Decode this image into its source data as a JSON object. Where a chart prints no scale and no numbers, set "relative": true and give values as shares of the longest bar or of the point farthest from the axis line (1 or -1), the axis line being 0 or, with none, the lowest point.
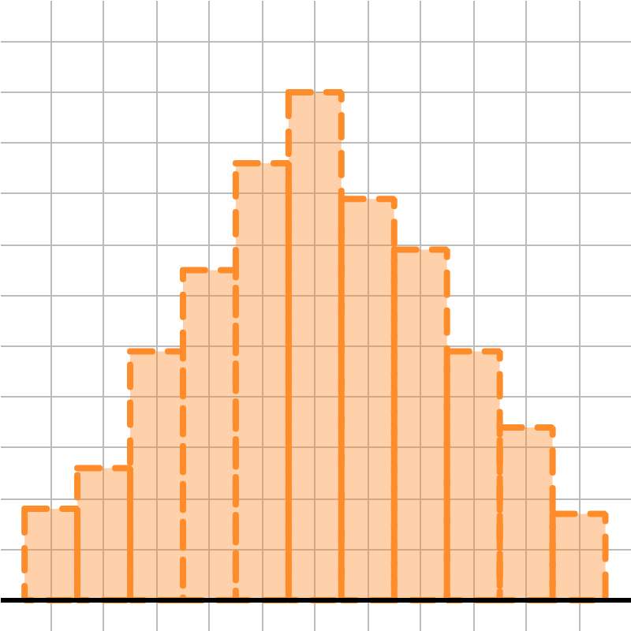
{
  "chart_data": {
    "type": "bar",
    "relative": true,
    "categories": [
      null,
      null,
      null,
      null,
      null,
      null,
      null,
      null,
      null,
      null,
      null
    ],
    "values": [
      0.18,
      0.26,
      0.49,
      0.65,
      0.86,
      1,
      0.79,
      0.69,
      0.49,
      0.34,
      0.17
    ],
    "color": "#ff8c2a",
    "line_style": "dashed",
    "grid": true
  }
}
